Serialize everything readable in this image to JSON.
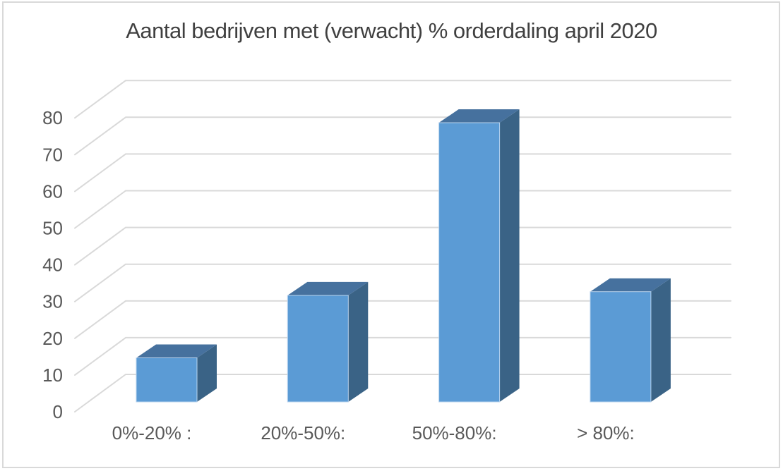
{
  "window": {
    "background": "#FFFFFF",
    "border_color": "#D9D9D9"
  },
  "chart_data": {
    "type": "bar",
    "projection": "3d",
    "title": "Aantal bedrijven met (verwacht) % orderdaling april 2020",
    "categories": [
      "0%-20% :",
      "20%-50%:",
      "50%-80%:",
      "> 80%:"
    ],
    "values": [
      12,
      29,
      76,
      30
    ],
    "xlabel": "",
    "ylabel": "",
    "ylim": [
      0,
      80
    ],
    "yticks": [
      0,
      10,
      20,
      30,
      40,
      50,
      60,
      70,
      80
    ],
    "grid": true,
    "legend": false,
    "colors": {
      "bar_front": "#5B9BD5",
      "bar_top": "#46719E",
      "bar_side": "#3A6386",
      "bar_edge": "#BAD4EE",
      "gridline": "#D9D9D9",
      "title": "#404040",
      "tick_labels": "#595959"
    }
  }
}
